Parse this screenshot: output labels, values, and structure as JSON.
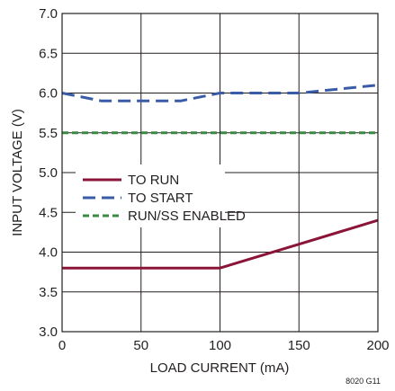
{
  "chart_data": {
    "type": "line",
    "title": "",
    "xlabel": "LOAD CURRENT (mA)",
    "ylabel": "INPUT VOLTAGE (V)",
    "xlim": [
      0,
      200
    ],
    "ylim": [
      3.0,
      7.0
    ],
    "x_ticks": [
      "0",
      "50",
      "100",
      "150",
      "200"
    ],
    "y_ticks": [
      "3.0",
      "3.5",
      "4.0",
      "4.5",
      "5.0",
      "5.5",
      "6.0",
      "6.5",
      "7.0"
    ],
    "grid": true,
    "legend_position": "middle-left",
    "series": [
      {
        "name": "TO RUN",
        "color": "#8b1538",
        "dash": "solid",
        "points": [
          [
            0,
            3.8
          ],
          [
            100,
            3.8
          ],
          [
            150,
            4.1
          ],
          [
            200,
            4.4
          ]
        ]
      },
      {
        "name": "TO START",
        "color": "#3a5ba8",
        "dash": "dash",
        "points": [
          [
            0,
            6.0
          ],
          [
            25,
            5.9
          ],
          [
            75,
            5.9
          ],
          [
            100,
            6.0
          ],
          [
            150,
            6.0
          ],
          [
            200,
            6.1
          ]
        ]
      },
      {
        "name": "RUN/SS ENABLED",
        "color": "#3a8a45",
        "dash": "short-dash",
        "points": [
          [
            0,
            5.5
          ],
          [
            200,
            5.5
          ]
        ]
      }
    ],
    "footnote": "8020 G11"
  }
}
